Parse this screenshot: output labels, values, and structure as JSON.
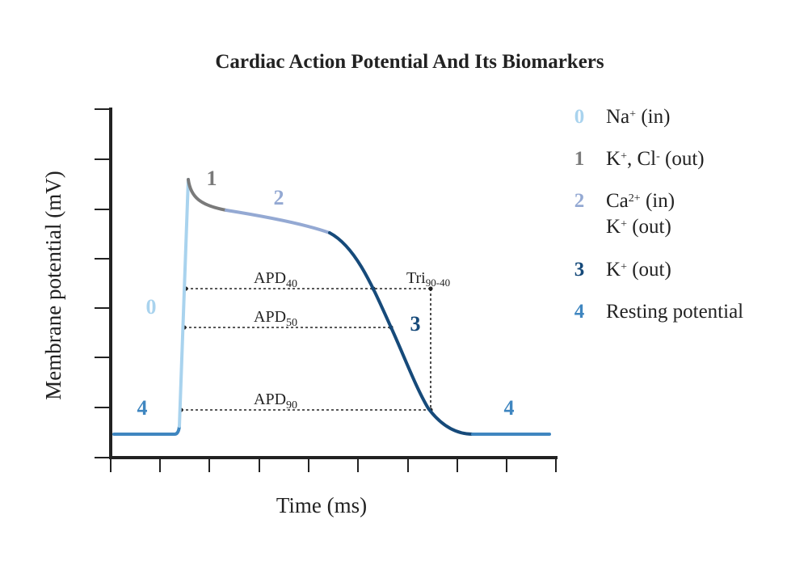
{
  "title": "Cardiac Action Potential And Its Biomarkers",
  "ylabel": "Membrane potential (mV)",
  "xlabel": "Time (ms)",
  "colors": {
    "phase0": "#a9d3ee",
    "phase1": "#7a7a7a",
    "phase2": "#94a9d3",
    "phase3": "#164a7a",
    "phase4": "#3f86c0",
    "axis": "#222222"
  },
  "phase_labels": {
    "p0": "0",
    "p1": "1",
    "p2": "2",
    "p3": "3",
    "p4_left": "4",
    "p4_right": "4"
  },
  "markers": {
    "apd40": {
      "main": "APD",
      "sub": "40"
    },
    "apd50": {
      "main": "APD",
      "sub": "50"
    },
    "apd90": {
      "main": "APD",
      "sub": "90"
    },
    "tri": {
      "main": "Tri",
      "sub": "90-40"
    }
  },
  "legend": [
    {
      "num": "0",
      "lines": [
        {
          "base": "Na",
          "sup": "+",
          "rest": " (in)"
        }
      ]
    },
    {
      "num": "1",
      "lines": [
        {
          "base": "K",
          "sup": "+",
          "rest": ", Cl",
          "sup2": "-",
          "rest2": " (out)"
        }
      ]
    },
    {
      "num": "2",
      "lines": [
        {
          "base": "Ca",
          "sup": "2+",
          "rest": " (in)"
        },
        {
          "base": "K",
          "sup": "+",
          "rest": " (out)"
        }
      ]
    },
    {
      "num": "3",
      "lines": [
        {
          "base": "K",
          "sup": "+",
          "rest": " (out)"
        }
      ]
    },
    {
      "num": "4",
      "lines": [
        {
          "base": "Resting potential",
          "sup": "",
          "rest": ""
        }
      ]
    }
  ]
}
